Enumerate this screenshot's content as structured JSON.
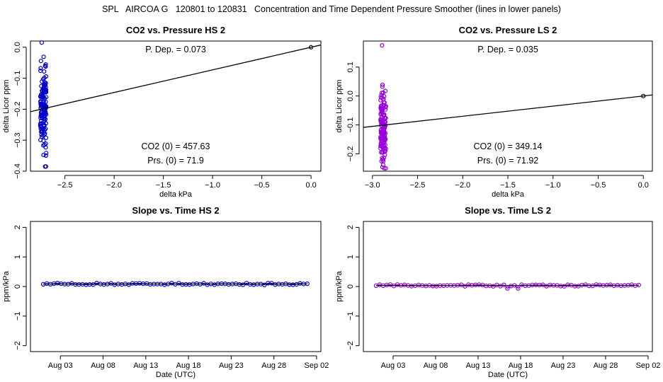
{
  "main_title": "SPL   AIRCOA G   120801 to 120831   Concentration and Time Dependent Pressure Smoother (lines in lower panels)",
  "colors": {
    "hs": "#0000cc",
    "ls": "#9900dd",
    "line": "#000000",
    "axis": "#000000"
  },
  "chart_data": [
    {
      "id": "co2-pressure-hs",
      "type": "scatter",
      "title": "CO2 vs. Pressure HS 2",
      "xlabel": "delta kPa",
      "ylabel": "delta Licor ppm",
      "xlim": [
        -2.85,
        0.1
      ],
      "ylim": [
        -0.4,
        0.02
      ],
      "xticks": [
        -2.5,
        -2.0,
        -1.5,
        -1.0,
        -0.5,
        0.0
      ],
      "xtick_labels": [
        "−2.5",
        "−2.0",
        "−1.5",
        "−1.0",
        "−0.5",
        "0.0"
      ],
      "yticks": [
        -0.4,
        -0.3,
        -0.2,
        -0.1,
        0.0
      ],
      "ytick_labels": [
        "−0.4",
        "−0.3",
        "−0.2",
        "−0.1",
        "0.0"
      ],
      "fit_line": {
        "slope": 0.073,
        "intercept": 0.0
      },
      "origin_point": {
        "x": 0.0,
        "y": 0.0
      },
      "cluster": {
        "x_center": -2.72,
        "x_spread": 0.03,
        "y_min": -0.385,
        "y_max": 0.015,
        "count": 150,
        "y_mean": -0.2,
        "y_sd": 0.065
      },
      "labels": {
        "p_dep": "P. Dep. =  0.073",
        "co2_0": "CO2 (0) =  457.63",
        "prs_0": "Prs. (0) =  71.9"
      }
    },
    {
      "id": "co2-pressure-ls",
      "type": "scatter",
      "title": "CO2 vs. Pressure LS 2",
      "xlabel": "delta kPa",
      "ylabel": "delta Licor ppm",
      "xlim": [
        -3.1,
        0.1
      ],
      "ylim": [
        -0.26,
        0.19
      ],
      "xticks": [
        -3.0,
        -2.5,
        -2.0,
        -1.5,
        -1.0,
        -0.5,
        0.0
      ],
      "xtick_labels": [
        "−3.0",
        "−2.5",
        "−2.0",
        "−1.5",
        "−1.0",
        "−0.5",
        "0.0"
      ],
      "yticks": [
        -0.2,
        -0.1,
        0.0,
        0.1
      ],
      "ytick_labels": [
        "−0.2",
        "−0.1",
        "0.0",
        "0.1"
      ],
      "fit_line": {
        "slope": 0.035,
        "intercept": 0.0
      },
      "origin_point": {
        "x": 0.0,
        "y": 0.0
      },
      "cluster": {
        "x_center": -2.88,
        "x_spread": 0.03,
        "y_min": -0.25,
        "y_max": 0.175,
        "count": 150,
        "y_mean": -0.12,
        "y_sd": 0.06
      },
      "labels": {
        "p_dep": "P. Dep. =  0.035",
        "co2_0": "CO2 (0) =  349.14",
        "prs_0": "Prs. (0) =  71.92"
      }
    },
    {
      "id": "slope-time-hs",
      "type": "line",
      "title": "Slope vs. Time HS 2",
      "xlabel": "Date (UTC)",
      "ylabel": "ppm/kPa",
      "xlim": [
        -1.5,
        32.5
      ],
      "ylim": [
        -2.2,
        2.2
      ],
      "xticks": [
        2,
        7,
        12,
        17,
        22,
        27,
        32
      ],
      "xtick_labels": [
        "Aug 03",
        "Aug 08",
        "Aug 13",
        "Aug 18",
        "Aug 23",
        "Aug 28",
        "Sep 02"
      ],
      "yticks": [
        -2,
        -1,
        0,
        1,
        2
      ],
      "ytick_labels": [
        "−2",
        "−1",
        "0",
        "1",
        "2"
      ],
      "series": {
        "x_start": 0.0,
        "x_end": 30.9,
        "count": 75,
        "level": 0.085,
        "noise": 0.03
      }
    },
    {
      "id": "slope-time-ls",
      "type": "line",
      "title": "Slope vs. Time LS 2",
      "xlabel": "Date (UTC)",
      "ylabel": "ppm/kPa",
      "xlim": [
        -1.5,
        32.5
      ],
      "ylim": [
        -2.2,
        2.2
      ],
      "xticks": [
        2,
        7,
        12,
        17,
        22,
        27,
        32
      ],
      "xtick_labels": [
        "Aug 03",
        "Aug 08",
        "Aug 13",
        "Aug 18",
        "Aug 23",
        "Aug 28",
        "Sep 02"
      ],
      "yticks": [
        -2,
        -1,
        0,
        1,
        2
      ],
      "ytick_labels": [
        "−2",
        "−1",
        "0",
        "1",
        "2"
      ],
      "series": {
        "x_start": 0.0,
        "x_end": 30.9,
        "count": 75,
        "level": 0.035,
        "noise": 0.03
      }
    }
  ]
}
